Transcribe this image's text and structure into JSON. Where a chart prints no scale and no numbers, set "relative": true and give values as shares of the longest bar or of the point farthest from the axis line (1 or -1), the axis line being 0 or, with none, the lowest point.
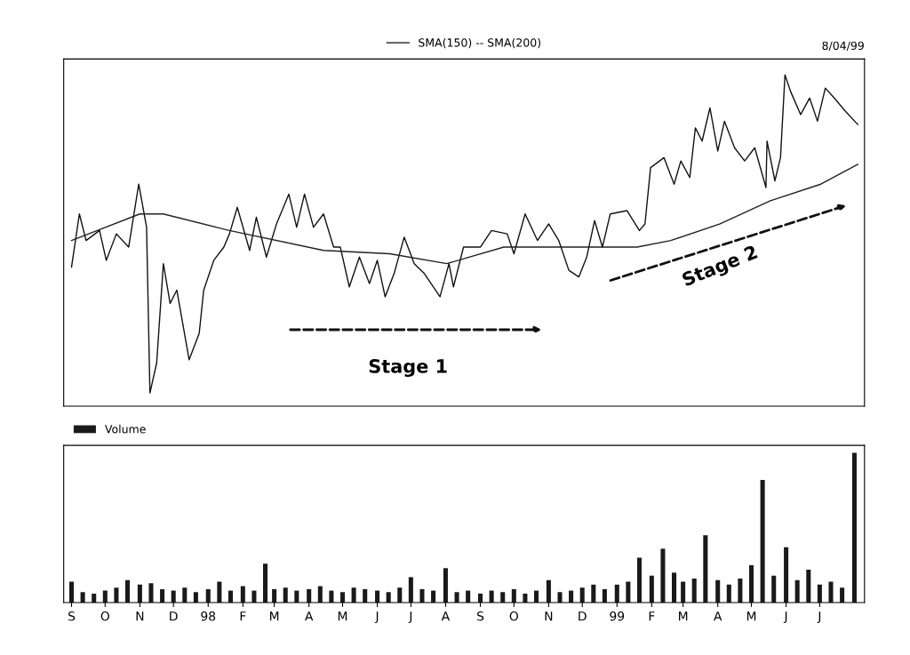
{
  "chart_data": [
    {
      "type": "line",
      "relative": true,
      "xlim": [
        "1997-08-25",
        "1999-08-10"
      ],
      "tick_labels": false,
      "legend": "top",
      "grid": false,
      "annotations": [
        "8/04/99",
        "Stage 1",
        "Stage 2"
      ],
      "series": [
        {
          "color": "#111111",
          "x": [
            "1997-09-01",
            "1997-09-08",
            "1997-09-14",
            "1997-09-26",
            "1997-10-02",
            "1997-10-11",
            "1997-10-22",
            "1997-10-31",
            "1997-11-07",
            "1997-11-10",
            "1997-11-16",
            "1997-11-22",
            "1997-11-28",
            "1997-12-04",
            "1997-12-15",
            "1997-12-24",
            "1997-12-28",
            "1998-01-06",
            "1998-01-15",
            "1998-01-20",
            "1998-01-27",
            "1998-02-07",
            "1998-02-13",
            "1998-02-22",
            "1998-03-03",
            "1998-03-14",
            "1998-03-21",
            "1998-03-28",
            "1998-04-05",
            "1998-04-14",
            "1998-04-23",
            "1998-04-29",
            "1998-05-07",
            "1998-05-16",
            "1998-05-25",
            "1998-06-01",
            "1998-06-08",
            "1998-06-16",
            "1998-06-25",
            "1998-07-04",
            "1998-07-13",
            "1998-07-27",
            "1998-08-04",
            "1998-08-08",
            "1998-08-17",
            "1998-09-01",
            "1998-09-11",
            "1998-09-25",
            "1998-10-01",
            "1998-10-11",
            "1998-10-22",
            "1998-11-01",
            "1998-11-10",
            "1998-11-19",
            "1998-11-28",
            "1998-12-05",
            "1998-12-12",
            "1998-12-19",
            "1998-12-26",
            "1999-01-10",
            "1999-01-21",
            "1999-01-26",
            "1999-01-31",
            "1999-02-12",
            "1999-02-21",
            "1999-02-27",
            "1999-03-07",
            "1999-03-12",
            "1999-03-18",
            "1999-03-25",
            "1999-04-01",
            "1999-04-07",
            "1999-04-16",
            "1999-04-25",
            "1999-05-04",
            "1999-05-14",
            "1999-05-15",
            "1999-05-22",
            "1999-05-27",
            "1999-05-31",
            "1999-06-05",
            "1999-06-14",
            "1999-06-22",
            "1999-06-29",
            "1999-07-06",
            "1999-07-14",
            "1999-07-24",
            "1999-08-04"
          ],
          "values": [
            0.42,
            0.58,
            0.5,
            0.53,
            0.44,
            0.52,
            0.48,
            0.67,
            0.54,
            0.04,
            0.13,
            0.43,
            0.31,
            0.35,
            0.14,
            0.22,
            0.35,
            0.44,
            0.48,
            0.52,
            0.6,
            0.47,
            0.57,
            0.45,
            0.55,
            0.64,
            0.54,
            0.64,
            0.54,
            0.58,
            0.48,
            0.48,
            0.36,
            0.45,
            0.37,
            0.44,
            0.33,
            0.4,
            0.51,
            0.43,
            0.4,
            0.33,
            0.43,
            0.36,
            0.48,
            0.48,
            0.53,
            0.52,
            0.46,
            0.58,
            0.5,
            0.55,
            0.5,
            0.41,
            0.39,
            0.45,
            0.56,
            0.48,
            0.58,
            0.59,
            0.53,
            0.55,
            0.72,
            0.75,
            0.67,
            0.74,
            0.69,
            0.84,
            0.8,
            0.9,
            0.77,
            0.86,
            0.78,
            0.74,
            0.78,
            0.66,
            0.8,
            0.68,
            0.75,
            1.0,
            0.95,
            0.88,
            0.93,
            0.86,
            0.96,
            0.93,
            0.89,
            0.85
          ]
        },
        {
          "name": "SMA(150) -- SMA(200)",
          "color": "#222222",
          "x": [
            "1997-09-01",
            "1997-11-01",
            "1997-11-22",
            "1998-01-20",
            "1998-04-14",
            "1998-06-12",
            "1998-08-02",
            "1998-09-22",
            "1998-10-06",
            "1998-12-05",
            "1999-01-19",
            "1999-02-18",
            "1999-04-03",
            "1999-05-18",
            "1999-07-02",
            "1999-08-04"
          ],
          "values": [
            0.5,
            0.58,
            0.58,
            0.53,
            0.47,
            0.46,
            0.43,
            0.48,
            0.48,
            0.48,
            0.48,
            0.5,
            0.55,
            0.62,
            0.67,
            0.73
          ]
        }
      ]
    },
    {
      "type": "bar",
      "relative": true,
      "xlim": [
        "1997-08-25",
        "1999-08-10"
      ],
      "tick_labels": "x",
      "legend": "top left",
      "grid": false,
      "xticks": [
        {
          "value": "1997-09-01",
          "label": "S"
        },
        {
          "value": "1997-10-01",
          "label": "O"
        },
        {
          "value": "1997-11-01",
          "label": "N"
        },
        {
          "value": "1997-12-01",
          "label": "D"
        },
        {
          "value": "1998-01-01",
          "label": "98"
        },
        {
          "value": "1998-02-01",
          "label": "F"
        },
        {
          "value": "1998-03-01",
          "label": "M"
        },
        {
          "value": "1998-04-01",
          "label": "A"
        },
        {
          "value": "1998-05-01",
          "label": "M"
        },
        {
          "value": "1998-06-01",
          "label": "J"
        },
        {
          "value": "1998-07-01",
          "label": "J"
        },
        {
          "value": "1998-08-01",
          "label": "A"
        },
        {
          "value": "1998-09-01",
          "label": "S"
        },
        {
          "value": "1998-10-01",
          "label": "O"
        },
        {
          "value": "1998-11-01",
          "label": "N"
        },
        {
          "value": "1998-12-01",
          "label": "D"
        },
        {
          "value": "1999-01-01",
          "label": "99"
        },
        {
          "value": "1999-02-01",
          "label": "F"
        },
        {
          "value": "1999-03-01",
          "label": "M"
        },
        {
          "value": "1999-04-01",
          "label": "A"
        },
        {
          "value": "1999-05-01",
          "label": "M"
        },
        {
          "value": "1999-06-01",
          "label": "J"
        },
        {
          "value": "1999-07-01",
          "label": "J"
        }
      ],
      "series": [
        {
          "name": "Volume",
          "color": "#1a1a1a",
          "x": [
            "1997-09-01",
            "1997-09-11",
            "1997-09-21",
            "1997-10-01",
            "1997-10-11",
            "1997-10-21",
            "1997-11-01",
            "1997-11-11",
            "1997-11-21",
            "1997-12-01",
            "1997-12-11",
            "1997-12-21",
            "1998-01-01",
            "1998-01-11",
            "1998-01-21",
            "1998-02-01",
            "1998-02-11",
            "1998-02-21",
            "1998-03-01",
            "1998-03-11",
            "1998-03-21",
            "1998-04-01",
            "1998-04-11",
            "1998-04-21",
            "1998-05-01",
            "1998-05-11",
            "1998-05-21",
            "1998-06-01",
            "1998-06-11",
            "1998-06-21",
            "1998-07-01",
            "1998-07-11",
            "1998-07-21",
            "1998-08-01",
            "1998-08-11",
            "1998-08-21",
            "1998-09-01",
            "1998-09-11",
            "1998-09-21",
            "1998-10-01",
            "1998-10-11",
            "1998-10-21",
            "1998-11-01",
            "1998-11-11",
            "1998-11-21",
            "1998-12-01",
            "1998-12-11",
            "1998-12-21",
            "1999-01-01",
            "1999-01-11",
            "1999-01-21",
            "1999-02-01",
            "1999-02-11",
            "1999-02-21",
            "1999-03-01",
            "1999-03-11",
            "1999-03-21",
            "1999-04-01",
            "1999-04-11",
            "1999-04-21",
            "1999-05-01",
            "1999-05-11",
            "1999-05-21",
            "1999-06-01",
            "1999-06-11",
            "1999-06-21",
            "1999-07-01",
            "1999-07-11",
            "1999-07-21",
            "1999-08-01"
          ],
          "values": [
            0.14,
            0.07,
            0.06,
            0.08,
            0.1,
            0.15,
            0.12,
            0.13,
            0.09,
            0.08,
            0.1,
            0.07,
            0.09,
            0.14,
            0.08,
            0.11,
            0.08,
            0.26,
            0.09,
            0.1,
            0.08,
            0.09,
            0.11,
            0.08,
            0.07,
            0.1,
            0.09,
            0.08,
            0.07,
            0.1,
            0.17,
            0.09,
            0.08,
            0.23,
            0.07,
            0.08,
            0.06,
            0.08,
            0.07,
            0.09,
            0.06,
            0.08,
            0.15,
            0.07,
            0.08,
            0.1,
            0.12,
            0.09,
            0.12,
            0.14,
            0.3,
            0.18,
            0.36,
            0.2,
            0.14,
            0.16,
            0.45,
            0.15,
            0.12,
            0.16,
            0.25,
            0.82,
            0.18,
            0.37,
            0.15,
            0.22,
            0.12,
            0.14,
            0.1,
            1.0
          ]
        }
      ]
    }
  ]
}
